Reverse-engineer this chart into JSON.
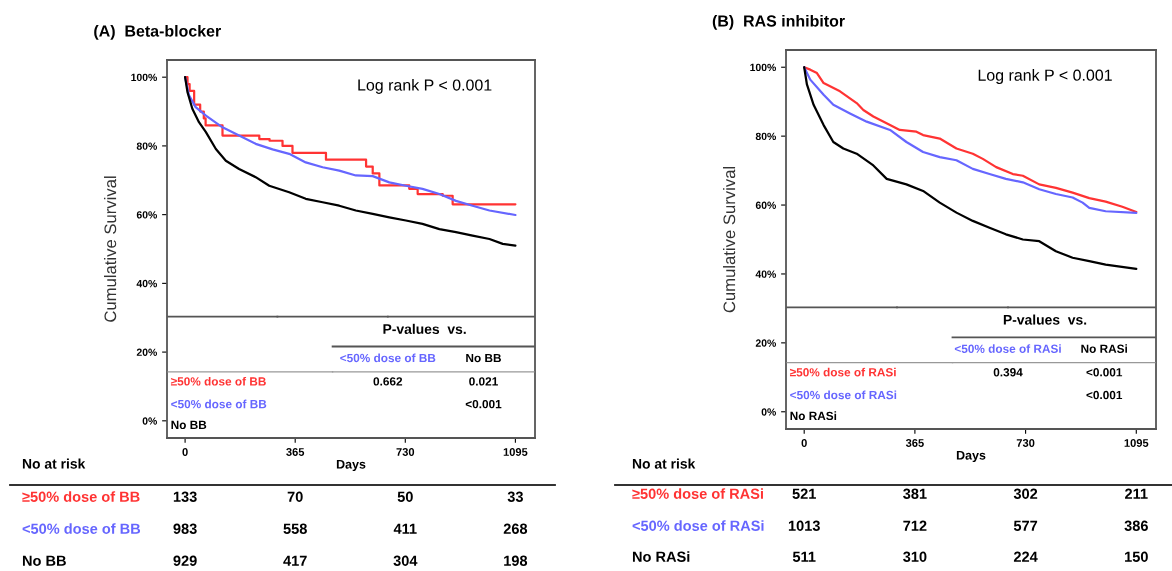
{
  "chart_data": [
    {
      "type": "line",
      "title": "(A)  Beta-blocker",
      "xlabel": "Days",
      "ylabel": "Cumulative Survival",
      "xlim": [
        -60,
        1160
      ],
      "xticks": [
        0,
        365,
        730,
        1095
      ],
      "ylim": [
        -5,
        105
      ],
      "yticks": [
        {
          "value": 0,
          "label": "0%"
        },
        {
          "value": 20,
          "label": "20%"
        },
        {
          "value": 40,
          "label": "40%"
        },
        {
          "value": 60,
          "label": "60%"
        },
        {
          "value": 80,
          "label": "80%"
        },
        {
          "value": 100,
          "label": "100%"
        }
      ],
      "grid": false,
      "legend": false,
      "series": [
        {
          "name": "≥50% dose of BB",
          "type": "step",
          "color": "#ff3333",
          "x": [
            0,
            8,
            15,
            30,
            50,
            62,
            68,
            108,
            124,
            235,
            246,
            280,
            323,
            356,
            467,
            594,
            600,
            622,
            644,
            738,
            743,
            771,
            854,
            887,
            1095
          ],
          "values": [
            100,
            98,
            96,
            92,
            90,
            88,
            86,
            86,
            83,
            83,
            82,
            81.5,
            80,
            78,
            76,
            76,
            74,
            72,
            68.5,
            68.5,
            67.5,
            66,
            65.5,
            63,
            63
          ]
        },
        {
          "name": "<50% dose of BB",
          "color": "#6666ff",
          "x": [
            0,
            13,
            35,
            69,
            124,
            179,
            234,
            290,
            345,
            400,
            456,
            511,
            566,
            622,
            677,
            732,
            787,
            843,
            898,
            953,
            1009,
            1095
          ],
          "values": [
            100,
            94.7,
            91.3,
            88.8,
            85.4,
            83,
            80.6,
            79,
            77.7,
            75.2,
            73.8,
            72.8,
            71.4,
            71.2,
            69.4,
            68.4,
            67.5,
            66,
            64,
            62.6,
            61.2,
            59.9
          ]
        },
        {
          "name": "No BB",
          "color": "#000000",
          "x": [
            0,
            8,
            24,
            46,
            69,
            102,
            135,
            179,
            234,
            279,
            345,
            400,
            456,
            511,
            566,
            622,
            677,
            732,
            787,
            843,
            898,
            953,
            1009,
            1053,
            1095
          ],
          "values": [
            100,
            95.6,
            90.8,
            86.9,
            84,
            79.1,
            75.7,
            73.3,
            70.9,
            68.4,
            66.5,
            64.6,
            63.6,
            62.6,
            61.2,
            60.2,
            59.2,
            58.3,
            57.3,
            55.8,
            54.9,
            53.9,
            52.9,
            51.5,
            51
          ]
        }
      ],
      "annotations": [
        "Log rank P < 0.001",
        "P-values  vs.",
        "0.662",
        "0.021",
        "<0.001",
        "No at risk",
        "133",
        "70",
        "50",
        "33",
        "983",
        "558",
        "411",
        "268",
        "929",
        "417",
        "304",
        "198"
      ]
    },
    {
      "type": "line",
      "title": "(B)  RAS inhibitor",
      "xlabel": "Days",
      "ylabel": "Cumulative Survival",
      "xlim": [
        -60,
        1160
      ],
      "xticks": [
        0,
        365,
        730,
        1095
      ],
      "ylim": [
        -5,
        105
      ],
      "yticks": [
        {
          "value": 0,
          "label": "0%"
        },
        {
          "value": 20,
          "label": "20%"
        },
        {
          "value": 40,
          "label": "40%"
        },
        {
          "value": 60,
          "label": "60%"
        },
        {
          "value": 80,
          "label": "80%"
        },
        {
          "value": 100,
          "label": "100%"
        }
      ],
      "grid": false,
      "legend": false,
      "series": [
        {
          "name": "≥50% dose of RASi",
          "color": "#ff3333",
          "x": [
            0,
            20,
            42,
            64,
            118,
            173,
            195,
            228,
            283,
            315,
            370,
            392,
            447,
            502,
            556,
            589,
            633,
            688,
            721,
            775,
            830,
            885,
            940,
            994,
            1049,
            1095
          ],
          "values": [
            100,
            99.3,
            98.3,
            95.4,
            93,
            89.6,
            87.6,
            85.7,
            83.2,
            81.8,
            81.3,
            80.3,
            79.3,
            76.4,
            74.9,
            73.4,
            71,
            69,
            68.5,
            66,
            65,
            63.6,
            62,
            61,
            59.5,
            58
          ]
        },
        {
          "name": "<50% dose of RASi",
          "color": "#6666ff",
          "x": [
            0,
            20,
            64,
            96,
            151,
            206,
            283,
            337,
            392,
            447,
            502,
            556,
            611,
            665,
            721,
            775,
            830,
            885,
            918,
            940,
            994,
            1095
          ],
          "values": [
            100,
            96.4,
            92,
            89.1,
            86.6,
            84.2,
            81.8,
            78.3,
            75.4,
            73.9,
            73,
            70.5,
            69,
            67.6,
            66.6,
            64.6,
            63.2,
            62.2,
            60.7,
            59.2,
            58.2,
            57.7
          ]
        },
        {
          "name": "No RASi",
          "color": "#000000",
          "x": [
            0,
            9,
            31,
            64,
            96,
            129,
            173,
            228,
            272,
            337,
            392,
            447,
            502,
            556,
            611,
            665,
            721,
            775,
            830,
            885,
            940,
            994,
            1095
          ],
          "values": [
            100,
            95,
            89.1,
            83.2,
            78.3,
            76.4,
            74.9,
            71.5,
            67.6,
            66,
            64.1,
            60.7,
            57.8,
            55.4,
            53.4,
            51.5,
            50,
            49.5,
            46.6,
            44.7,
            43.7,
            42.7,
            41.5
          ]
        }
      ],
      "annotations": [
        "Log rank P < 0.001",
        "P-values  vs.",
        "0.394",
        "<0.001",
        "<0.001",
        "No at risk",
        "521",
        "381",
        "302",
        "211",
        "1013",
        "712",
        "577",
        "386",
        "511",
        "310",
        "224",
        "150"
      ]
    }
  ]
}
